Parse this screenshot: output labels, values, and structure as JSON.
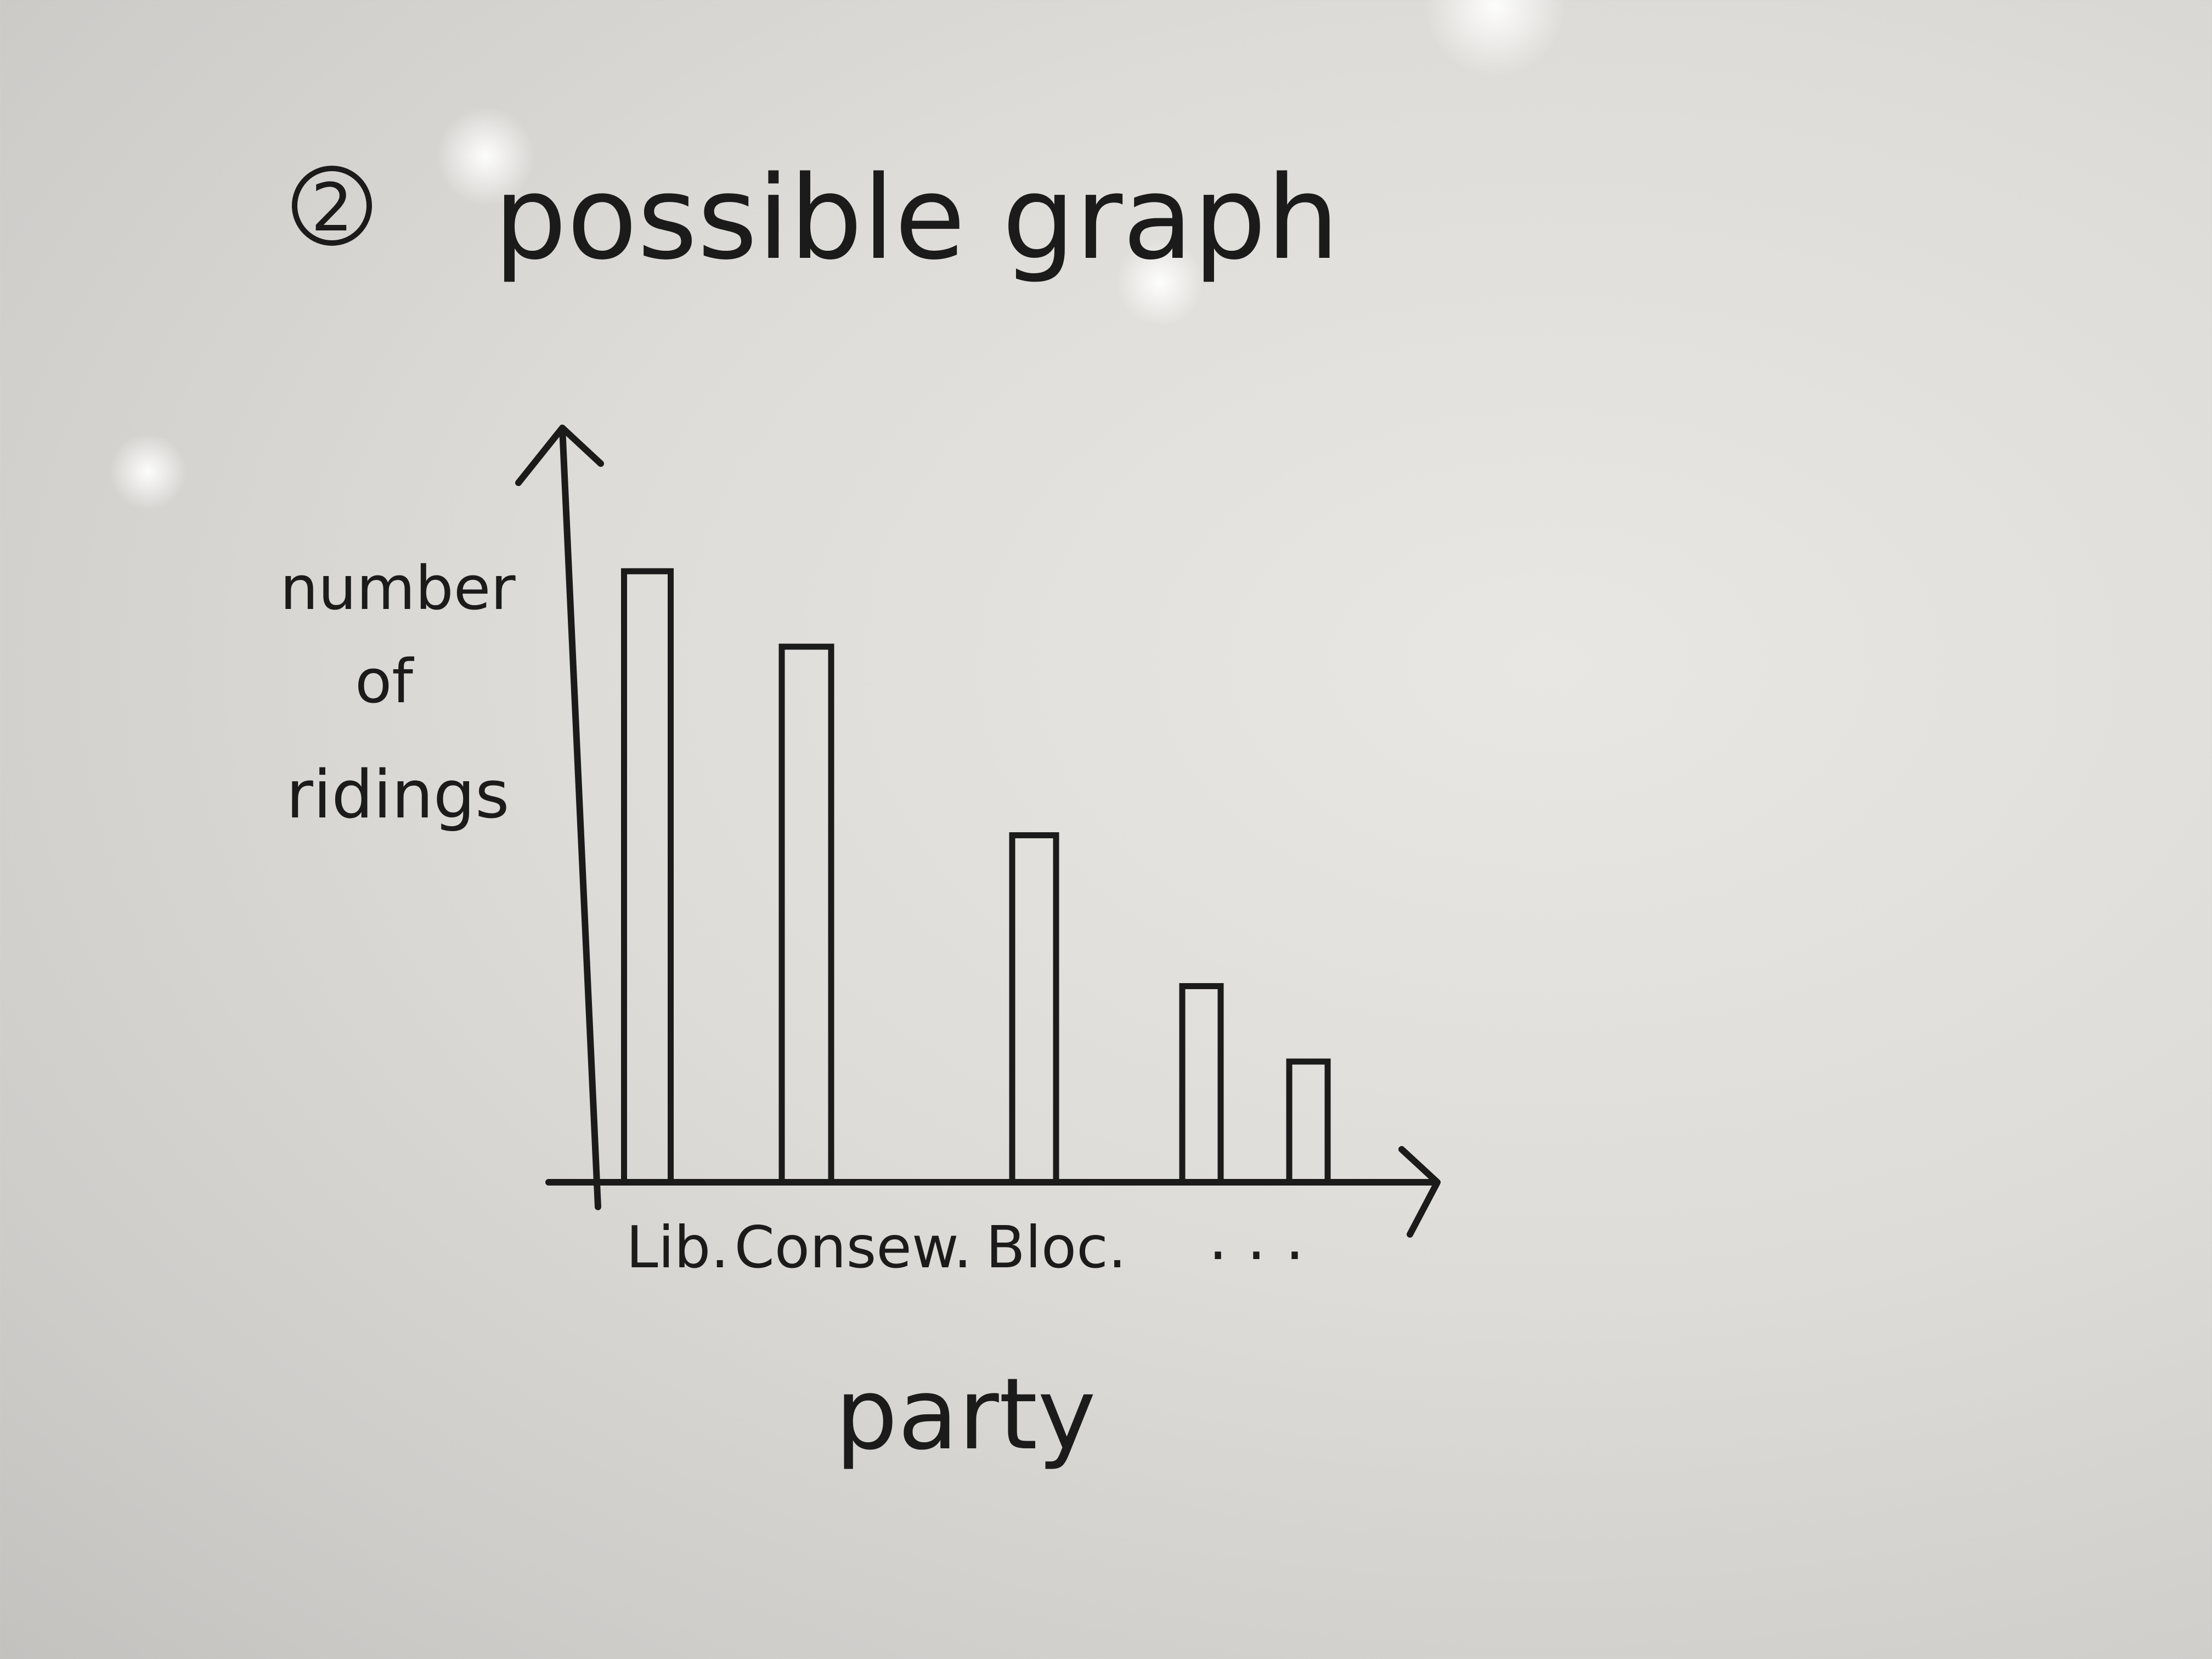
{
  "title": {
    "marker": "2",
    "text": "possible graph"
  },
  "chart_data": {
    "type": "bar",
    "title": "possible graph",
    "ylabel_lines": [
      "number",
      "of",
      "ridings"
    ],
    "xlabel": "party",
    "categories": [
      "Lib.",
      "Consew.",
      "Bloc.",
      "",
      ""
    ],
    "continuation_label": ". . .",
    "values": [
      81,
      71,
      46,
      26,
      16
    ],
    "ylim": [
      0,
      100
    ],
    "y_ticks_shown": false,
    "grid": false,
    "bar_fill": "none"
  },
  "colors": {
    "ink": "#1b1b1b",
    "board": "#e2e0dc"
  }
}
